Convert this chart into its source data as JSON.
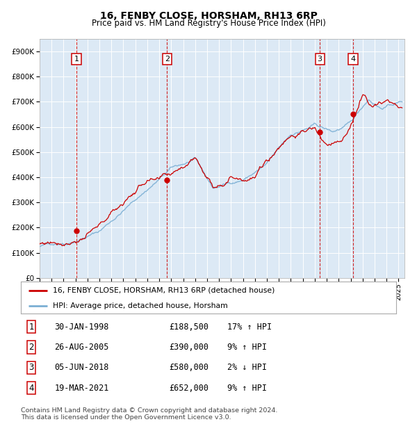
{
  "title": "16, FENBY CLOSE, HORSHAM, RH13 6RP",
  "subtitle": "Price paid vs. HM Land Registry's House Price Index (HPI)",
  "background_color": "#dce9f5",
  "plot_bg_color": "#dce9f5",
  "grid_color": "#ffffff",
  "hpi_line_color": "#7bafd4",
  "price_line_color": "#cc0000",
  "sale_dot_color": "#cc0000",
  "dashed_line_color": "#cc0000",
  "ylim": [
    0,
    950000
  ],
  "yticks": [
    0,
    100000,
    200000,
    300000,
    400000,
    500000,
    600000,
    700000,
    800000,
    900000
  ],
  "ytick_labels": [
    "£0",
    "£100K",
    "£200K",
    "£300K",
    "£400K",
    "£500K",
    "£600K",
    "£700K",
    "£800K",
    "£900K"
  ],
  "xlim_start": 1995.0,
  "xlim_end": 2025.5,
  "xticks": [
    1995,
    1996,
    1997,
    1998,
    1999,
    2000,
    2001,
    2002,
    2003,
    2004,
    2005,
    2006,
    2007,
    2008,
    2009,
    2010,
    2011,
    2012,
    2013,
    2014,
    2015,
    2016,
    2017,
    2018,
    2019,
    2020,
    2021,
    2022,
    2023,
    2024,
    2025
  ],
  "sales": [
    {
      "num": 1,
      "year": 1998.08,
      "price": 188500,
      "label": "30-JAN-1998",
      "pct": "17%",
      "dir": "↑"
    },
    {
      "num": 2,
      "year": 2005.65,
      "price": 390000,
      "label": "26-AUG-2005",
      "pct": "9%",
      "dir": "↑"
    },
    {
      "num": 3,
      "year": 2018.42,
      "price": 580000,
      "label": "05-JUN-2018",
      "pct": "2%",
      "dir": "↓"
    },
    {
      "num": 4,
      "year": 2021.21,
      "price": 652000,
      "label": "19-MAR-2021",
      "pct": "9%",
      "dir": "↑"
    }
  ],
  "legend_line1": "16, FENBY CLOSE, HORSHAM, RH13 6RP (detached house)",
  "legend_line2": "HPI: Average price, detached house, Horsham",
  "footer": "Contains HM Land Registry data © Crown copyright and database right 2024.\nThis data is licensed under the Open Government Licence v3.0.",
  "table_rows": [
    [
      "1",
      "30-JAN-1998",
      "£188,500",
      "17% ↑ HPI"
    ],
    [
      "2",
      "26-AUG-2005",
      "£390,000",
      "9% ↑ HPI"
    ],
    [
      "3",
      "05-JUN-2018",
      "£580,000",
      "2% ↓ HPI"
    ],
    [
      "4",
      "19-MAR-2021",
      "£652,000",
      "9% ↑ HPI"
    ]
  ]
}
